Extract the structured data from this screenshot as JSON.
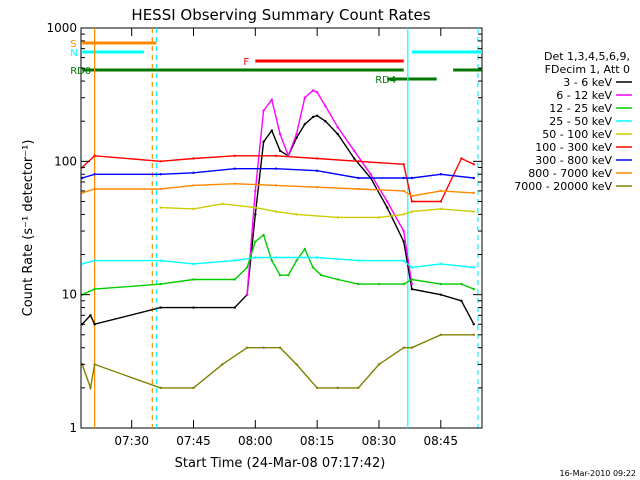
{
  "chart_data": {
    "type": "line",
    "title": "HESSI Observing Summary Count Rates",
    "xlabel": "Start Time (24-Mar-08 07:17:42)",
    "ylabel": "Count Rate (s⁻¹ detector⁻¹)",
    "x_unit": "UT minutes, 24-Mar-08",
    "xlim": [
      "07:17:42",
      "08:55:00"
    ],
    "x_ticks": [
      "07:30",
      "07:45",
      "08:00",
      "08:15",
      "08:30",
      "08:45"
    ],
    "y_scale": "log",
    "ylim": [
      1,
      1000
    ],
    "y_ticks": [
      "1",
      "10",
      "100",
      "1000"
    ],
    "grid": false,
    "legend_position": "right",
    "legend_header": [
      "Det 1,3,4,5,6,9,",
      "FDecim 1, Att 0"
    ],
    "date_stamp": "16-Mar-2010 09:22",
    "series": [
      {
        "name": "3 - 6 keV",
        "color": "#000000",
        "x": [
          "07:18",
          "07:20",
          "07:21",
          "07:37",
          "07:45",
          "07:55",
          "07:58",
          "08:00",
          "08:02",
          "08:04",
          "08:06",
          "08:08",
          "08:10",
          "08:12",
          "08:14",
          "08:15",
          "08:17",
          "08:20",
          "08:24",
          "08:28",
          "08:32",
          "08:36",
          "08:38",
          "08:45",
          "08:50",
          "08:53"
        ],
        "y": [
          6,
          7,
          6,
          8,
          8,
          8,
          10,
          40,
          140,
          170,
          120,
          110,
          150,
          190,
          215,
          220,
          200,
          160,
          105,
          75,
          45,
          25,
          11,
          10,
          9,
          6
        ]
      },
      {
        "name": "6 - 12 keV",
        "color": "#ff00ff",
        "x": [
          "07:58",
          "08:00",
          "08:02",
          "08:04",
          "08:06",
          "08:08",
          "08:10",
          "08:12",
          "08:14",
          "08:15",
          "08:17",
          "08:20",
          "08:24",
          "08:28",
          "08:32",
          "08:36",
          "08:38"
        ],
        "y": [
          10,
          60,
          240,
          290,
          160,
          110,
          160,
          300,
          340,
          330,
          260,
          180,
          120,
          80,
          50,
          30,
          12
        ]
      },
      {
        "name": "12 - 25 keV",
        "color": "#00cc00",
        "x": [
          "07:18",
          "07:21",
          "07:37",
          "07:45",
          "07:55",
          "07:58",
          "08:00",
          "08:02",
          "08:04",
          "08:06",
          "08:08",
          "08:10",
          "08:12",
          "08:14",
          "08:16",
          "08:20",
          "08:25",
          "08:30",
          "08:36",
          "08:38",
          "08:45",
          "08:50",
          "08:53"
        ],
        "y": [
          10,
          11,
          12,
          13,
          13,
          16,
          25,
          28,
          18,
          14,
          14,
          18,
          22,
          16,
          14,
          13,
          12,
          12,
          12,
          13,
          12,
          12,
          11
        ]
      },
      {
        "name": "25 - 50 keV",
        "color": "#00ffff",
        "x": [
          "07:18",
          "07:21",
          "07:37",
          "07:45",
          "07:55",
          "08:00",
          "08:05",
          "08:15",
          "08:25",
          "08:36",
          "08:38",
          "08:45",
          "08:53"
        ],
        "y": [
          17,
          18,
          18,
          17,
          18,
          19,
          19,
          19,
          18,
          18,
          16,
          17,
          16
        ]
      },
      {
        "name": "50 - 100 keV",
        "color": "#cccc00",
        "x": [
          "07:37",
          "07:45",
          "07:52",
          "08:00",
          "08:05",
          "08:10",
          "08:20",
          "08:30",
          "08:36",
          "08:38",
          "08:45",
          "08:53"
        ],
        "y": [
          45,
          44,
          48,
          45,
          42,
          40,
          38,
          38,
          40,
          42,
          44,
          42
        ]
      },
      {
        "name": "100 - 300 keV",
        "color": "#ff0000",
        "x": [
          "07:18",
          "07:21",
          "07:37",
          "07:45",
          "07:55",
          "08:05",
          "08:15",
          "08:25",
          "08:36",
          "08:38",
          "08:45",
          "08:50",
          "08:53"
        ],
        "y": [
          90,
          110,
          100,
          105,
          110,
          110,
          105,
          100,
          95,
          50,
          50,
          105,
          95
        ]
      },
      {
        "name": "300 - 800 keV",
        "color": "#0000ff",
        "x": [
          "07:18",
          "07:21",
          "07:37",
          "07:45",
          "07:55",
          "08:05",
          "08:15",
          "08:25",
          "08:36",
          "08:38",
          "08:45",
          "08:53"
        ],
        "y": [
          75,
          80,
          80,
          82,
          88,
          88,
          85,
          75,
          75,
          75,
          80,
          75
        ]
      },
      {
        "name": "800 - 7000 keV",
        "color": "#ff8800",
        "x": [
          "07:18",
          "07:21",
          "07:37",
          "07:45",
          "07:55",
          "08:05",
          "08:15",
          "08:25",
          "08:36",
          "08:38",
          "08:45",
          "08:53"
        ],
        "y": [
          58,
          62,
          62,
          66,
          68,
          66,
          64,
          62,
          60,
          55,
          60,
          58
        ]
      },
      {
        "name": "7000 - 20000 keV",
        "color": "#808000",
        "x": [
          "07:18",
          "07:20",
          "07:21",
          "07:37",
          "07:45",
          "07:52",
          "07:58",
          "08:02",
          "08:06",
          "08:10",
          "08:15",
          "08:20",
          "08:25",
          "08:30",
          "08:36",
          "08:38",
          "08:45",
          "08:53"
        ],
        "y": [
          3,
          2,
          3,
          2,
          2,
          3,
          4,
          4,
          4,
          3,
          2,
          2,
          2,
          3,
          4,
          4,
          5,
          5
        ]
      }
    ],
    "status_bars": [
      {
        "label": "S",
        "color": "#ff8800",
        "start": "07:18",
        "end": "07:36",
        "level": 1
      },
      {
        "label": "N",
        "color": "#00ffff",
        "start": "07:18",
        "end": "07:33",
        "level": 2
      },
      {
        "label": "",
        "color": "#00ffff",
        "start": "08:38",
        "end": "08:55",
        "level": 2
      },
      {
        "label": "F",
        "color": "#ff0000",
        "start": "08:00",
        "end": "08:36",
        "level": 3
      },
      {
        "label": "RD0",
        "color": "#007700",
        "start": "07:18",
        "end": "08:36",
        "level": 4
      },
      {
        "label": "",
        "color": "#007700",
        "start": "08:48",
        "end": "08:55",
        "level": 4
      },
      {
        "label": "RD4",
        "color": "#007700",
        "start": "08:32",
        "end": "08:44",
        "level": 5
      }
    ],
    "vertical_markers": [
      {
        "time": "07:21",
        "color": "#ff8800",
        "style": "solid"
      },
      {
        "time": "07:35",
        "color": "#ff8800",
        "style": "dashed"
      },
      {
        "time": "07:36",
        "color": "#00ffff",
        "style": "dashed"
      },
      {
        "time": "08:37",
        "color": "#00ffff",
        "style": "solid"
      },
      {
        "time": "08:54",
        "color": "#00ffff",
        "style": "dashed"
      }
    ]
  }
}
